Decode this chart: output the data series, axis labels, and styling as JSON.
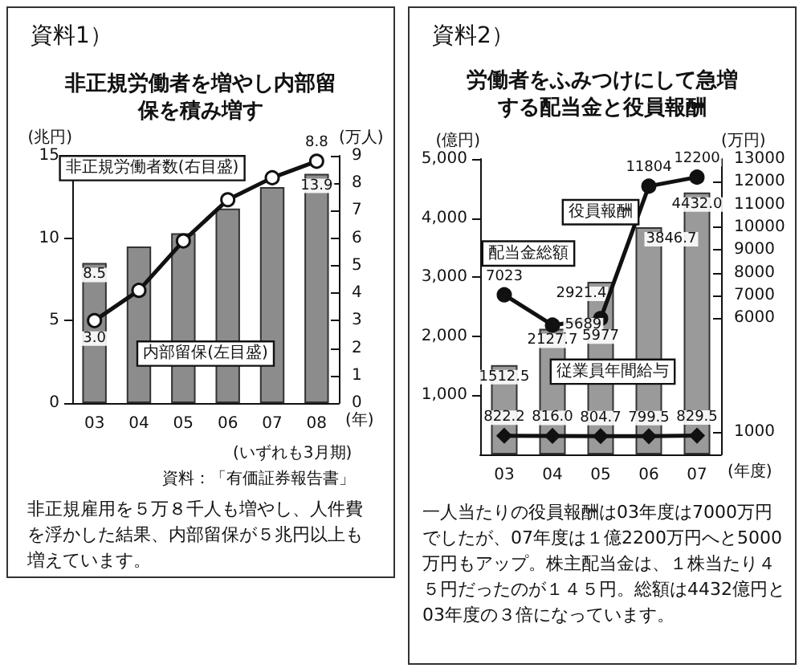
{
  "chart_data": [
    {
      "type": "bar",
      "title": "非正規労働者を増やし内部留保を積み増す",
      "ylabel": "(兆円)",
      "y2label": "(万人)",
      "xlabel": "(年)",
      "annotations": [
        "資料1）",
        "(いずれも3月期)",
        "資料：「有価証券報告書」",
        "非正規雇用を５万８千人も増やし、人件費を浮かした結果、内部留保が５兆円以上も増えています。"
      ],
      "categories": [
        "03",
        "04",
        "05",
        "06",
        "07",
        "08"
      ],
      "series": [
        {
          "name": "内部留保(左目盛)",
          "color": "#8c8c8c",
          "values": [
            8.5,
            9.5,
            10.3,
            11.8,
            13.1,
            13.9
          ],
          "value_labels": [
            "8.5",
            null,
            null,
            null,
            null,
            "13.9"
          ]
        },
        {
          "name": "非正規労働者数(右目盛)",
          "type": "line",
          "axis": "y2",
          "color": "#111111",
          "marker": "circle",
          "values": [
            3.0,
            4.1,
            5.9,
            7.4,
            8.2,
            8.8
          ],
          "value_labels": [
            "3.0",
            null,
            null,
            null,
            null,
            "8.8"
          ]
        }
      ],
      "ylim": [
        0,
        15
      ],
      "yticks": [
        0,
        5,
        10,
        15
      ],
      "y2lim": [
        0,
        9
      ],
      "y2ticks": [
        0,
        1,
        2,
        3,
        4,
        5,
        6,
        7,
        8,
        9
      ],
      "line_style": "solid",
      "legend": false
    },
    {
      "type": "bar",
      "title": "労働者をふみつけにして急増する配当金と役員報酬",
      "ylabel": "(億円)",
      "y2label": "(万円)",
      "xlabel": "(年度)",
      "annotations": [
        "資料2）",
        "一人当たりの役員報酬は03年度は7000万円でしたが、07年度は１億2200万円へと5000万円もアップ。株主配当金は、１株当たり４５円だったのが１４５円。総額は4432億円と03年度の３倍になっています。"
      ],
      "categories": [
        "03",
        "04",
        "05",
        "06",
        "07"
      ],
      "series": [
        {
          "name": "配当金総額",
          "color": "#9a9a9a",
          "values": [
            1512.5,
            2127.7,
            2921.4,
            3846.7,
            4432.0
          ],
          "value_labels": [
            "1512.5",
            "2127.7",
            "2921.4",
            "3846.7",
            "4432.0"
          ]
        },
        {
          "name": "役員報酬",
          "type": "line",
          "axis": "y2",
          "color": "#111111",
          "marker": "circle",
          "values": [
            7023,
            5689,
            5977,
            11804,
            12200
          ],
          "value_labels": [
            "7023",
            "5689",
            "5977",
            "11804",
            "12200"
          ]
        },
        {
          "name": "従業員年間給与",
          "type": "line",
          "axis": "y2",
          "color": "#111111",
          "marker": "diamond",
          "values": [
            822.2,
            816.0,
            804.7,
            799.5,
            829.5
          ],
          "value_labels": [
            "822.2",
            "816.0",
            "804.7",
            "799.5",
            "829.5"
          ]
        }
      ],
      "ylim": [
        0,
        5000
      ],
      "yticks": [
        {
          "value": 1000,
          "label": "1,000"
        },
        {
          "value": 2000,
          "label": "2,000"
        },
        {
          "value": 3000,
          "label": "3,000"
        },
        {
          "value": 4000,
          "label": "4,000"
        },
        {
          "value": 5000,
          "label": "5,000"
        }
      ],
      "y2lim": [
        0,
        13000
      ],
      "y2ticks": [
        1000,
        6000,
        7000,
        8000,
        9000,
        10000,
        11000,
        12000,
        13000
      ],
      "line_style": "solid",
      "legend": false
    }
  ]
}
